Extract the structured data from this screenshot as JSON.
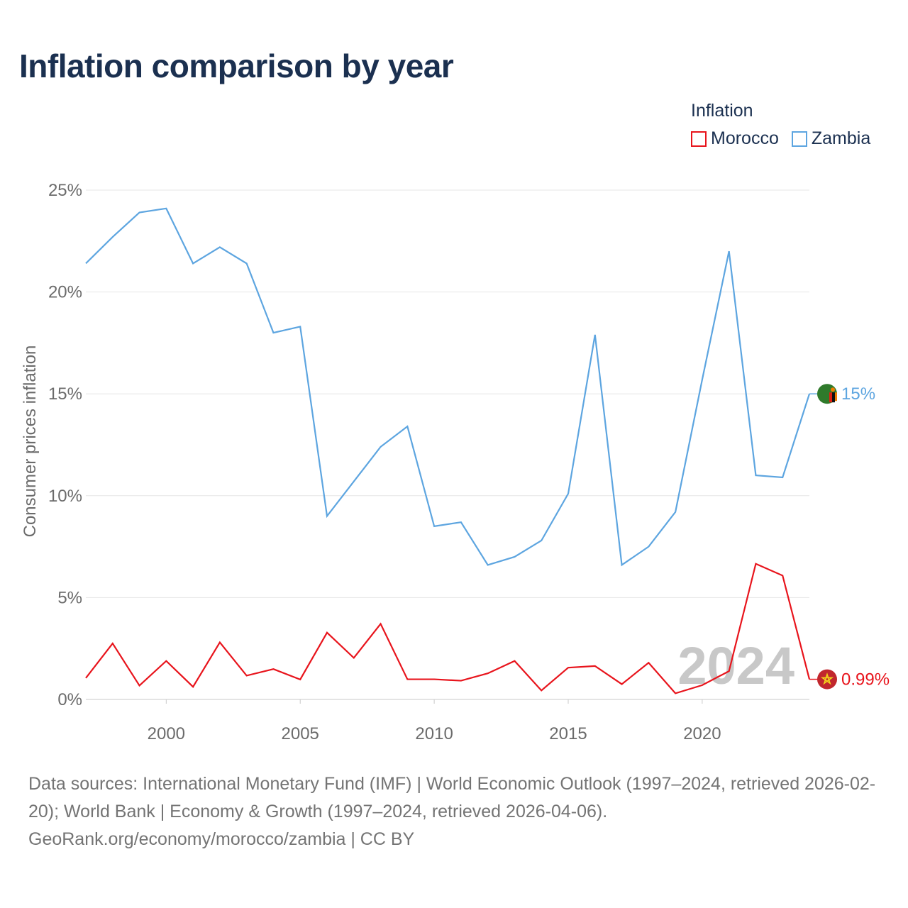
{
  "title": "Inflation comparison by year",
  "legend": {
    "title": "Inflation",
    "items": [
      {
        "label": "Morocco",
        "color": "#e8141c"
      },
      {
        "label": "Zambia",
        "color": "#5da5e0"
      }
    ]
  },
  "chart_data": {
    "type": "line",
    "title": "Inflation comparison by year",
    "ylabel": "Consumer prices inflation",
    "xlabel": "",
    "xlim": [
      1997,
      2024
    ],
    "ylim": [
      0,
      25
    ],
    "y_ticks": [
      0,
      5,
      10,
      15,
      20,
      25
    ],
    "y_tick_labels": [
      "0%",
      "5%",
      "10%",
      "15%",
      "20%",
      "25%"
    ],
    "x_ticks": [
      2000,
      2005,
      2010,
      2015,
      2020
    ],
    "x_tick_labels": [
      "2000",
      "2005",
      "2010",
      "2015",
      "2020"
    ],
    "watermark_year": "2024",
    "x": [
      1997,
      1998,
      1999,
      2000,
      2001,
      2002,
      2003,
      2004,
      2005,
      2006,
      2007,
      2008,
      2009,
      2010,
      2011,
      2012,
      2013,
      2014,
      2015,
      2016,
      2017,
      2018,
      2019,
      2020,
      2021,
      2022,
      2023,
      2024
    ],
    "series": [
      {
        "name": "Zambia",
        "color": "#5da5e0",
        "end_label": "15%",
        "values": [
          21.4,
          22.7,
          23.9,
          24.1,
          21.4,
          22.2,
          21.4,
          18.0,
          18.3,
          9.0,
          10.7,
          12.4,
          13.4,
          8.5,
          8.7,
          6.6,
          7.0,
          7.8,
          10.1,
          17.9,
          6.6,
          7.5,
          9.2,
          15.7,
          22.0,
          11.0,
          10.9,
          15.0
        ]
      },
      {
        "name": "Morocco",
        "color": "#e8141c",
        "end_label": "0.99%",
        "values": [
          1.05,
          2.75,
          0.68,
          1.89,
          0.62,
          2.8,
          1.17,
          1.49,
          0.98,
          3.28,
          2.04,
          3.71,
          0.99,
          0.99,
          0.92,
          1.28,
          1.89,
          0.44,
          1.56,
          1.64,
          0.75,
          1.8,
          0.3,
          0.7,
          1.39,
          6.66,
          6.08,
          0.99
        ]
      }
    ]
  },
  "footer": {
    "sources": "Data sources: International Monetary Fund (IMF) | World Economic Outlook (1997–2024, retrieved 2026-02-20); World Bank | Economy & Growth (1997–2024, retrieved 2026-04-06).",
    "credit": "GeoRank.org/economy/morocco/zambia | CC BY"
  }
}
